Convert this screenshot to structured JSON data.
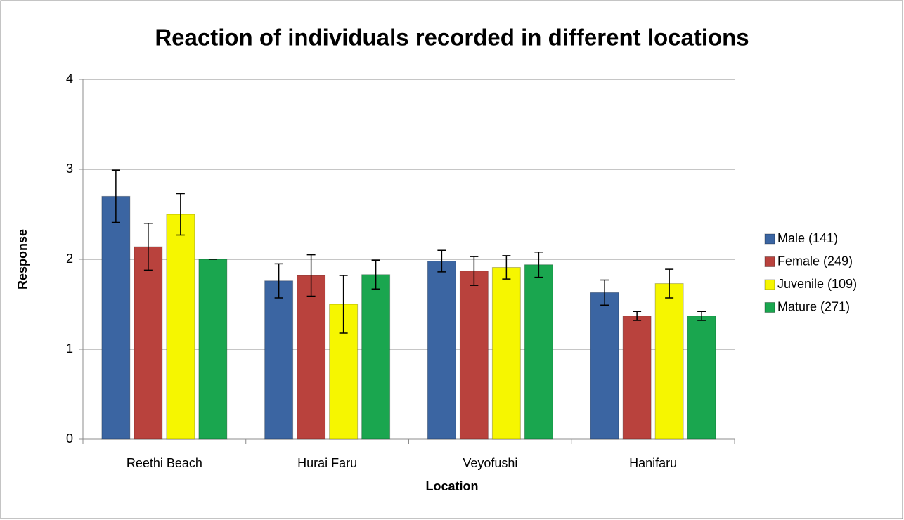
{
  "chart_data": {
    "type": "bar",
    "title": "Reaction of individuals recorded in different locations",
    "x_label": "Location",
    "y_label": "Response",
    "categories": [
      "Reethi Beach",
      "Hurai Faru",
      "Veyofushi",
      "Hanifaru"
    ],
    "series": [
      {
        "name": "Male (141)",
        "color": "#3b65a2",
        "values": [
          2.7,
          1.76,
          1.98,
          1.63
        ],
        "errors": [
          0.29,
          0.19,
          0.12,
          0.14
        ]
      },
      {
        "name": "Female (249)",
        "color": "#b9423d",
        "values": [
          2.14,
          1.82,
          1.87,
          1.37
        ],
        "errors": [
          0.26,
          0.23,
          0.16,
          0.05
        ]
      },
      {
        "name": "Juvenile (109)",
        "color": "#f6f600",
        "values": [
          2.5,
          1.5,
          1.91,
          1.73
        ],
        "errors": [
          0.23,
          0.32,
          0.13,
          0.16
        ]
      },
      {
        "name": "Mature (271)",
        "color": "#1aa64f",
        "values": [
          2.0,
          1.83,
          1.94,
          1.37
        ],
        "errors": [
          0.0,
          0.16,
          0.14,
          0.05
        ]
      }
    ],
    "ylim": [
      0,
      4
    ],
    "yticks": [
      0,
      1,
      2,
      3,
      4
    ],
    "grid": true,
    "legend": "right"
  }
}
